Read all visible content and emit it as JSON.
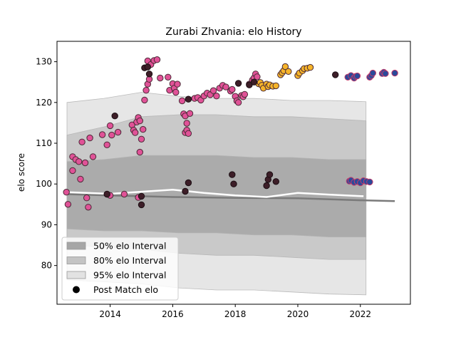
{
  "chart_data": {
    "type": "scatter",
    "title": "Zurabi Zhvania: elo History",
    "xlabel": "",
    "ylabel": "elo score",
    "xlim": [
      2012.3,
      2023.6
    ],
    "ylim": [
      70.5,
      135
    ],
    "x_ticks": [
      2014,
      2016,
      2018,
      2020,
      2022
    ],
    "y_ticks": [
      80,
      90,
      100,
      110,
      120,
      130
    ],
    "grid": false,
    "legend_position": "lower-left",
    "legend": [
      {
        "label": "50% elo Interval",
        "kind": "band50"
      },
      {
        "label": "80% elo Interval",
        "kind": "band80"
      },
      {
        "label": "95% elo Interval",
        "kind": "band95"
      },
      {
        "label": "Post Match elo",
        "kind": "marker"
      }
    ],
    "colors": {
      "band50": "#a6a6a6",
      "band80": "#c4c4c4",
      "band95": "#e2e2e2",
      "pink": "#e05297",
      "orange": "#f6b42a",
      "navy": "#2b4a9a",
      "dark": "#3d1e28",
      "median_line": "#7a7a7a"
    },
    "interval_start": 2012.62,
    "interval_end": 2022.18,
    "interval_bands": {
      "band95": {
        "upper": [
          120,
          121,
          122.5,
          121.5,
          121,
          121,
          120.5,
          120.5,
          120.2
        ],
        "lower": [
          76.5,
          76,
          75.5,
          74.5,
          74,
          74,
          73.5,
          73,
          72.8
        ]
      },
      "band80": {
        "upper": [
          112,
          114,
          116.5,
          117,
          117,
          116.5,
          116.5,
          116,
          115.5
        ],
        "lower": [
          85,
          84.5,
          84,
          83,
          82.5,
          82.5,
          82,
          81.5,
          81.5
        ]
      },
      "band50": {
        "upper": [
          105.5,
          106,
          107,
          107,
          107,
          106.5,
          106.5,
          106,
          106
        ],
        "lower": [
          89,
          88.5,
          88.5,
          88,
          88,
          87.5,
          87.5,
          87,
          87
        ]
      }
    },
    "interval_x": [
      2012.62,
      2013.8,
      2015,
      2016.2,
      2017.4,
      2018.6,
      2019.8,
      2021,
      2022.18
    ],
    "median_lines": [
      {
        "x": [
          2012.62,
          2014,
          2016,
          2018,
          2020,
          2022,
          2023.1
        ],
        "y": [
          97.5,
          97.2,
          96.8,
          96.6,
          96.5,
          96.0,
          95.8
        ],
        "color": "#7a7a7a"
      },
      {
        "x": [
          2012.62,
          2014,
          2016,
          2017,
          2018,
          2019,
          2020,
          2021,
          2022.1
        ],
        "y": [
          98.0,
          97.6,
          98.6,
          97.8,
          97.2,
          96.8,
          97.8,
          97.4,
          97.0
        ],
        "color": "#ffffff"
      }
    ],
    "series": [
      {
        "color_key": "pink",
        "points": [
          [
            2012.6,
            98
          ],
          [
            2012.65,
            95
          ],
          [
            2012.8,
            106.7
          ],
          [
            2012.8,
            103.3
          ],
          [
            2012.9,
            106
          ],
          [
            2013.0,
            105.5
          ],
          [
            2013.05,
            101.2
          ],
          [
            2013.1,
            110.3
          ],
          [
            2013.2,
            105.2
          ],
          [
            2013.3,
            94.3
          ],
          [
            2013.35,
            111.3
          ],
          [
            2013.45,
            106.7
          ],
          [
            2013.75,
            112.1
          ],
          [
            2013.9,
            109.6
          ],
          [
            2014.0,
            114.3
          ],
          [
            2014.05,
            112.0
          ],
          [
            2014.25,
            112.7
          ],
          [
            2014.7,
            114.5
          ],
          [
            2014.75,
            113.2
          ],
          [
            2014.8,
            112.6
          ],
          [
            2014.85,
            115.2
          ],
          [
            2014.9,
            116.3
          ],
          [
            2014.95,
            115.5
          ],
          [
            2014.95,
            107.8
          ],
          [
            2015.0,
            111.0
          ],
          [
            2015.05,
            113.4
          ],
          [
            2015.1,
            120.6
          ],
          [
            2015.15,
            123.0
          ],
          [
            2015.2,
            124.5
          ],
          [
            2015.25,
            125.7
          ],
          [
            2015.2,
            130.2
          ],
          [
            2015.3,
            129.3
          ],
          [
            2015.4,
            130.3
          ],
          [
            2015.5,
            130.5
          ],
          [
            2015.6,
            126.0
          ],
          [
            2015.85,
            126.2
          ],
          [
            2015.9,
            123.0
          ],
          [
            2016.0,
            124.6
          ],
          [
            2016.05,
            123.5
          ],
          [
            2016.1,
            122.5
          ],
          [
            2016.15,
            124.5
          ],
          [
            2016.3,
            120.4
          ],
          [
            2016.35,
            117.2
          ],
          [
            2016.4,
            116.7
          ],
          [
            2016.45,
            114.9
          ],
          [
            2016.4,
            112.6
          ],
          [
            2016.45,
            113.2
          ],
          [
            2016.5,
            112.4
          ],
          [
            2016.55,
            117.3
          ],
          [
            2016.7,
            121.0
          ],
          [
            2016.8,
            121.2
          ],
          [
            2016.9,
            120.6
          ],
          [
            2017.0,
            121.6
          ],
          [
            2017.1,
            122.3
          ],
          [
            2017.2,
            121.9
          ],
          [
            2017.3,
            122.9
          ],
          [
            2017.4,
            121.6
          ],
          [
            2017.5,
            123.5
          ],
          [
            2017.6,
            124.2
          ],
          [
            2017.7,
            123.8
          ],
          [
            2017.85,
            122.8
          ],
          [
            2017.9,
            123.2
          ],
          [
            2018.0,
            121.5
          ],
          [
            2018.05,
            120.4
          ],
          [
            2018.1,
            120.0
          ],
          [
            2018.2,
            121.7
          ],
          [
            2018.25,
            121.4
          ],
          [
            2018.3,
            122.0
          ],
          [
            2018.45,
            124.5
          ],
          [
            2018.55,
            125.5
          ],
          [
            2018.6,
            126.0
          ],
          [
            2018.65,
            127.0
          ],
          [
            2018.7,
            126.3
          ],
          [
            2014.0,
            97.2
          ],
          [
            2013.25,
            96.6
          ],
          [
            2014.45,
            97.5
          ],
          [
            2014.9,
            96.7
          ]
        ]
      },
      {
        "color_key": "orange",
        "points": [
          [
            2018.75,
            124.6
          ],
          [
            2018.8,
            124.9
          ],
          [
            2018.85,
            124.2
          ],
          [
            2018.9,
            123.5
          ],
          [
            2019.0,
            124.5
          ],
          [
            2019.05,
            123.9
          ],
          [
            2019.1,
            124.3
          ],
          [
            2019.2,
            124.0
          ],
          [
            2019.3,
            124.1
          ],
          [
            2019.45,
            126.8
          ],
          [
            2019.5,
            127.3
          ],
          [
            2019.55,
            127.8
          ],
          [
            2019.6,
            128.8
          ],
          [
            2019.7,
            127.6
          ],
          [
            2020.0,
            126.6
          ],
          [
            2020.05,
            127.2
          ],
          [
            2020.15,
            127.8
          ],
          [
            2020.2,
            128.3
          ],
          [
            2020.3,
            128.4
          ],
          [
            2020.4,
            128.6
          ]
        ]
      },
      {
        "color_key": "dark",
        "points": [
          [
            2014.15,
            116.7
          ],
          [
            2015.0,
            94.9
          ],
          [
            2015.1,
            128.5
          ],
          [
            2015.2,
            128.7
          ],
          [
            2015.25,
            127.0
          ],
          [
            2016.4,
            98.2
          ],
          [
            2016.5,
            100.3
          ],
          [
            2016.5,
            120.8
          ],
          [
            2017.9,
            102.3
          ],
          [
            2017.95,
            100.0
          ],
          [
            2018.1,
            124.7
          ],
          [
            2018.45,
            124.3
          ],
          [
            2018.6,
            125.0
          ],
          [
            2019.0,
            99.6
          ],
          [
            2019.05,
            101.1
          ],
          [
            2019.1,
            102.3
          ],
          [
            2019.3,
            100.6
          ],
          [
            2021.2,
            126.8
          ],
          [
            2013.9,
            97.5
          ],
          [
            2015.0,
            97.0
          ]
        ]
      },
      {
        "color_key": "navy",
        "points": [
          [
            2021.6,
            126.2
          ],
          [
            2021.7,
            126.6
          ],
          [
            2021.8,
            126.0
          ],
          [
            2021.85,
            126.4
          ],
          [
            2021.9,
            126.5
          ],
          [
            2022.3,
            126.2
          ],
          [
            2022.35,
            126.6
          ],
          [
            2022.4,
            127.2
          ],
          [
            2022.7,
            127.1
          ],
          [
            2022.75,
            127.4
          ],
          [
            2022.8,
            127.1
          ],
          [
            2023.1,
            127.2
          ],
          [
            2021.65,
            100.7
          ],
          [
            2021.7,
            100.9
          ],
          [
            2021.8,
            100.4
          ],
          [
            2021.9,
            100.6
          ],
          [
            2022.0,
            100.3
          ],
          [
            2022.1,
            100.8
          ],
          [
            2022.2,
            100.6
          ],
          [
            2022.3,
            100.5
          ]
        ]
      }
    ]
  }
}
